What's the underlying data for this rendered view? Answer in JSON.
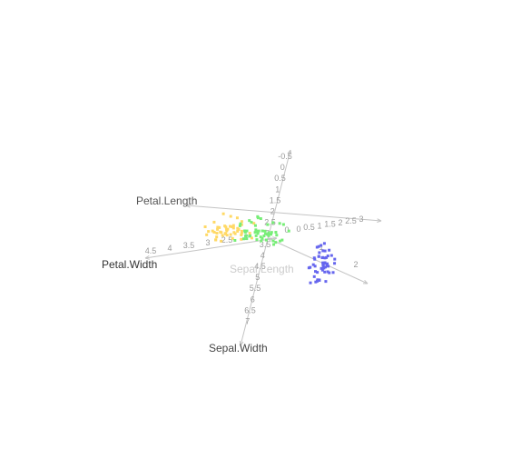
{
  "chart_data": {
    "type": "scatter",
    "projection": "3d",
    "axes": [
      {
        "label": "Petal.Length",
        "label_color": "#555555",
        "ticks": [
          "0",
          "0.5",
          "1",
          "1.5",
          "2",
          "2.5",
          "3"
        ]
      },
      {
        "label": "Petal.Width",
        "label_color": "#333333",
        "ticks": [
          "4.5",
          "4",
          "3.5",
          "3",
          "2.5",
          "2"
        ]
      },
      {
        "label": "Sepal.Length",
        "label_color": "#cccccc",
        "ticks": [
          "0",
          "1",
          "2"
        ]
      },
      {
        "label": "Sepal.Width",
        "label_color": "#444444",
        "ticks": [
          "-0.5",
          "0",
          "0.5",
          "1",
          "1.5",
          "2",
          "2.5",
          "3",
          "3.5",
          "4",
          "4.5",
          "5",
          "5.5",
          "6",
          "6.5",
          "7"
        ]
      }
    ],
    "series": [
      {
        "color": "#ffd966",
        "n_points": 50
      },
      {
        "color": "#77ee77",
        "n_points": 50
      },
      {
        "color": "#6666ee",
        "n_points": 50
      }
    ],
    "grid": false,
    "legend": "none"
  }
}
